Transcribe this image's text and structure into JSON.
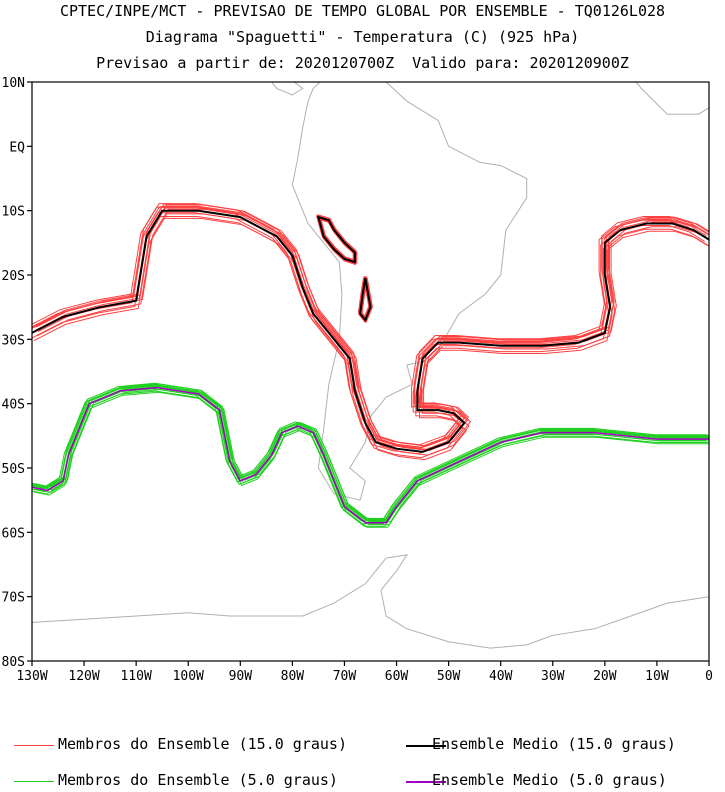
{
  "header": {
    "line1": "CPTEC/INPE/MCT - PREVISAO DE TEMPO GLOBAL POR ENSEMBLE - TQ0126L028",
    "line2": "Diagrama \"Spaguetti\" - Temperatura (C) (925 hPa)",
    "line3": "Previsao a partir de: 2020120700Z  Valido para: 2020120900Z"
  },
  "axes": {
    "lat_labels": [
      "10N",
      "EQ",
      "10S",
      "20S",
      "30S",
      "40S",
      "50S",
      "60S",
      "70S",
      "80S"
    ],
    "lon_labels": [
      "130W",
      "120W",
      "110W",
      "100W",
      "90W",
      "80W",
      "70W",
      "60W",
      "50W",
      "40W",
      "30W",
      "20W",
      "10W",
      "0"
    ]
  },
  "legend": [
    {
      "label": "Membros do Ensemble (15.0 graus)",
      "color": "#ff4040",
      "width": 1
    },
    {
      "label": "Ensemble Medio (15.0 graus)",
      "color": "#000000",
      "width": 2
    },
    {
      "label": "Membros do Ensemble (5.0 graus)",
      "color": "#20d020",
      "width": 1
    },
    {
      "label": "Ensemble Medio (5.0 graus)",
      "color": "#a000c0",
      "width": 2
    }
  ],
  "colors": {
    "member_15": "#ff4040",
    "mean_15": "#000000",
    "member_5": "#20d020",
    "mean_5": "#a000c0",
    "coast": "#b0b0b0"
  },
  "map": {
    "lon_range": [
      -130,
      0
    ],
    "lat_range": [
      -80,
      10
    ],
    "contours": {
      "t15_main": [
        [
          -130,
          -29
        ],
        [
          -124,
          -26.5
        ],
        [
          -117,
          -25
        ],
        [
          -110,
          -24
        ],
        [
          -109,
          -19
        ],
        [
          -108,
          -14
        ],
        [
          -105,
          -10
        ],
        [
          -98,
          -10
        ],
        [
          -90,
          -11
        ],
        [
          -83,
          -14
        ],
        [
          -80,
          -17
        ],
        [
          -78,
          -22
        ],
        [
          -76,
          -26
        ],
        [
          -72,
          -30
        ],
        [
          -69,
          -33
        ],
        [
          -68,
          -38
        ],
        [
          -66,
          -43
        ],
        [
          -64,
          -46
        ],
        [
          -60,
          -47
        ],
        [
          -55,
          -47.5
        ],
        [
          -50,
          -46
        ],
        [
          -47,
          -43
        ],
        [
          -49,
          -41.5
        ],
        [
          -52,
          -41
        ],
        [
          -54,
          -41
        ],
        [
          -56,
          -41
        ],
        [
          -56,
          -38
        ],
        [
          -55,
          -33
        ],
        [
          -52,
          -30.5
        ],
        [
          -48,
          -30.5
        ],
        [
          -40,
          -31
        ],
        [
          -32,
          -31
        ],
        [
          -25,
          -30.5
        ],
        [
          -20,
          -29
        ],
        [
          -19,
          -25
        ],
        [
          -20,
          -20
        ],
        [
          -20,
          -15
        ],
        [
          -17,
          -13
        ],
        [
          -12,
          -12
        ],
        [
          -7,
          -12
        ],
        [
          -3,
          -13
        ],
        [
          0,
          -14.5
        ]
      ],
      "t15_andes_a": [
        [
          -75,
          -11
        ],
        [
          -74,
          -14
        ],
        [
          -72,
          -16
        ],
        [
          -70,
          -17.5
        ],
        [
          -68,
          -18
        ],
        [
          -68,
          -16.5
        ],
        [
          -70,
          -15
        ],
        [
          -72,
          -13
        ],
        [
          -73,
          -11.5
        ],
        [
          -75,
          -11
        ]
      ],
      "t15_andes_b": [
        [
          -66,
          -20.5
        ],
        [
          -65,
          -25
        ],
        [
          -66,
          -27
        ],
        [
          -67,
          -26
        ],
        [
          -66.5,
          -23
        ],
        [
          -66,
          -20.5
        ]
      ],
      "t5_main": [
        [
          -130,
          -53
        ],
        [
          -127,
          -53.5
        ],
        [
          -124,
          -52
        ],
        [
          -123,
          -48
        ],
        [
          -121,
          -44
        ],
        [
          -119,
          -40
        ],
        [
          -113,
          -38
        ],
        [
          -106,
          -37.5
        ],
        [
          -98,
          -38.5
        ],
        [
          -94,
          -41
        ],
        [
          -93,
          -45
        ],
        [
          -92,
          -49
        ],
        [
          -90,
          -52
        ],
        [
          -87,
          -51
        ],
        [
          -84,
          -48
        ],
        [
          -82,
          -44.5
        ],
        [
          -79,
          -43.5
        ],
        [
          -76,
          -44.5
        ],
        [
          -74,
          -48
        ],
        [
          -72,
          -52
        ],
        [
          -70,
          -56
        ],
        [
          -66,
          -58.5
        ],
        [
          -62,
          -58.5
        ],
        [
          -60,
          -56
        ],
        [
          -56,
          -52
        ],
        [
          -48,
          -49
        ],
        [
          -40,
          -46
        ],
        [
          -32,
          -44.5
        ],
        [
          -22,
          -44.5
        ],
        [
          -10,
          -45.5
        ],
        [
          0,
          -45.5
        ]
      ],
      "coast_sa": [
        [
          -79,
          -2
        ],
        [
          -80,
          -6
        ],
        [
          -77,
          -12
        ],
        [
          -71,
          -18
        ],
        [
          -70.5,
          -23
        ],
        [
          -71,
          -30
        ],
        [
          -73,
          -37
        ],
        [
          -74,
          -44
        ],
        [
          -75,
          -50
        ],
        [
          -72,
          -54
        ],
        [
          -67,
          -55
        ],
        [
          -66,
          -52
        ],
        [
          -69,
          -50
        ],
        [
          -66,
          -46
        ],
        [
          -65,
          -42
        ],
        [
          -62,
          -39
        ],
        [
          -57,
          -37
        ],
        [
          -58,
          -34
        ],
        [
          -53,
          -33
        ],
        [
          -48,
          -26
        ],
        [
          -43,
          -23
        ],
        [
          -40,
          -20
        ],
        [
          -39,
          -13
        ],
        [
          -35,
          -8
        ],
        [
          -35,
          -5
        ],
        [
          -40,
          -3
        ],
        [
          -44,
          -2.5
        ],
        [
          -50,
          0
        ],
        [
          -52,
          4
        ],
        [
          -58,
          7
        ],
        [
          -62,
          10
        ],
        [
          -68,
          11
        ],
        [
          -72,
          12
        ],
        [
          -76,
          9
        ],
        [
          -77,
          7
        ],
        [
          -78,
          3
        ],
        [
          -79,
          -2
        ]
      ],
      "coast_na": [
        [
          -110,
          24
        ],
        [
          -105,
          20
        ],
        [
          -95,
          16
        ],
        [
          -88,
          14
        ],
        [
          -83,
          9
        ],
        [
          -80,
          8
        ],
        [
          -78,
          9
        ],
        [
          -83,
          12
        ],
        [
          -86,
          16
        ],
        [
          -90,
          21
        ],
        [
          -97,
          22
        ],
        [
          -105,
          24
        ],
        [
          -110,
          24
        ]
      ],
      "coast_ant": [
        [
          -130,
          -74
        ],
        [
          -120,
          -73.5
        ],
        [
          -110,
          -73
        ],
        [
          -100,
          -72.5
        ],
        [
          -92,
          -73
        ],
        [
          -85,
          -73
        ],
        [
          -78,
          -73
        ],
        [
          -72,
          -71
        ],
        [
          -66,
          -68
        ],
        [
          -62,
          -64
        ],
        [
          -58,
          -63.5
        ],
        [
          -60,
          -66
        ],
        [
          -63,
          -69
        ],
        [
          -62,
          -73
        ],
        [
          -58,
          -75
        ],
        [
          -50,
          -77
        ],
        [
          -42,
          -78
        ],
        [
          -35,
          -77.5
        ],
        [
          -30,
          -76
        ],
        [
          -22,
          -75
        ],
        [
          -15,
          -73
        ],
        [
          -8,
          -71
        ],
        [
          0,
          -70
        ]
      ],
      "coast_af": [
        [
          -17,
          15
        ],
        [
          -15,
          11
        ],
        [
          -13,
          9
        ],
        [
          -8,
          5
        ],
        [
          -2,
          5
        ],
        [
          0,
          6
        ]
      ]
    }
  }
}
